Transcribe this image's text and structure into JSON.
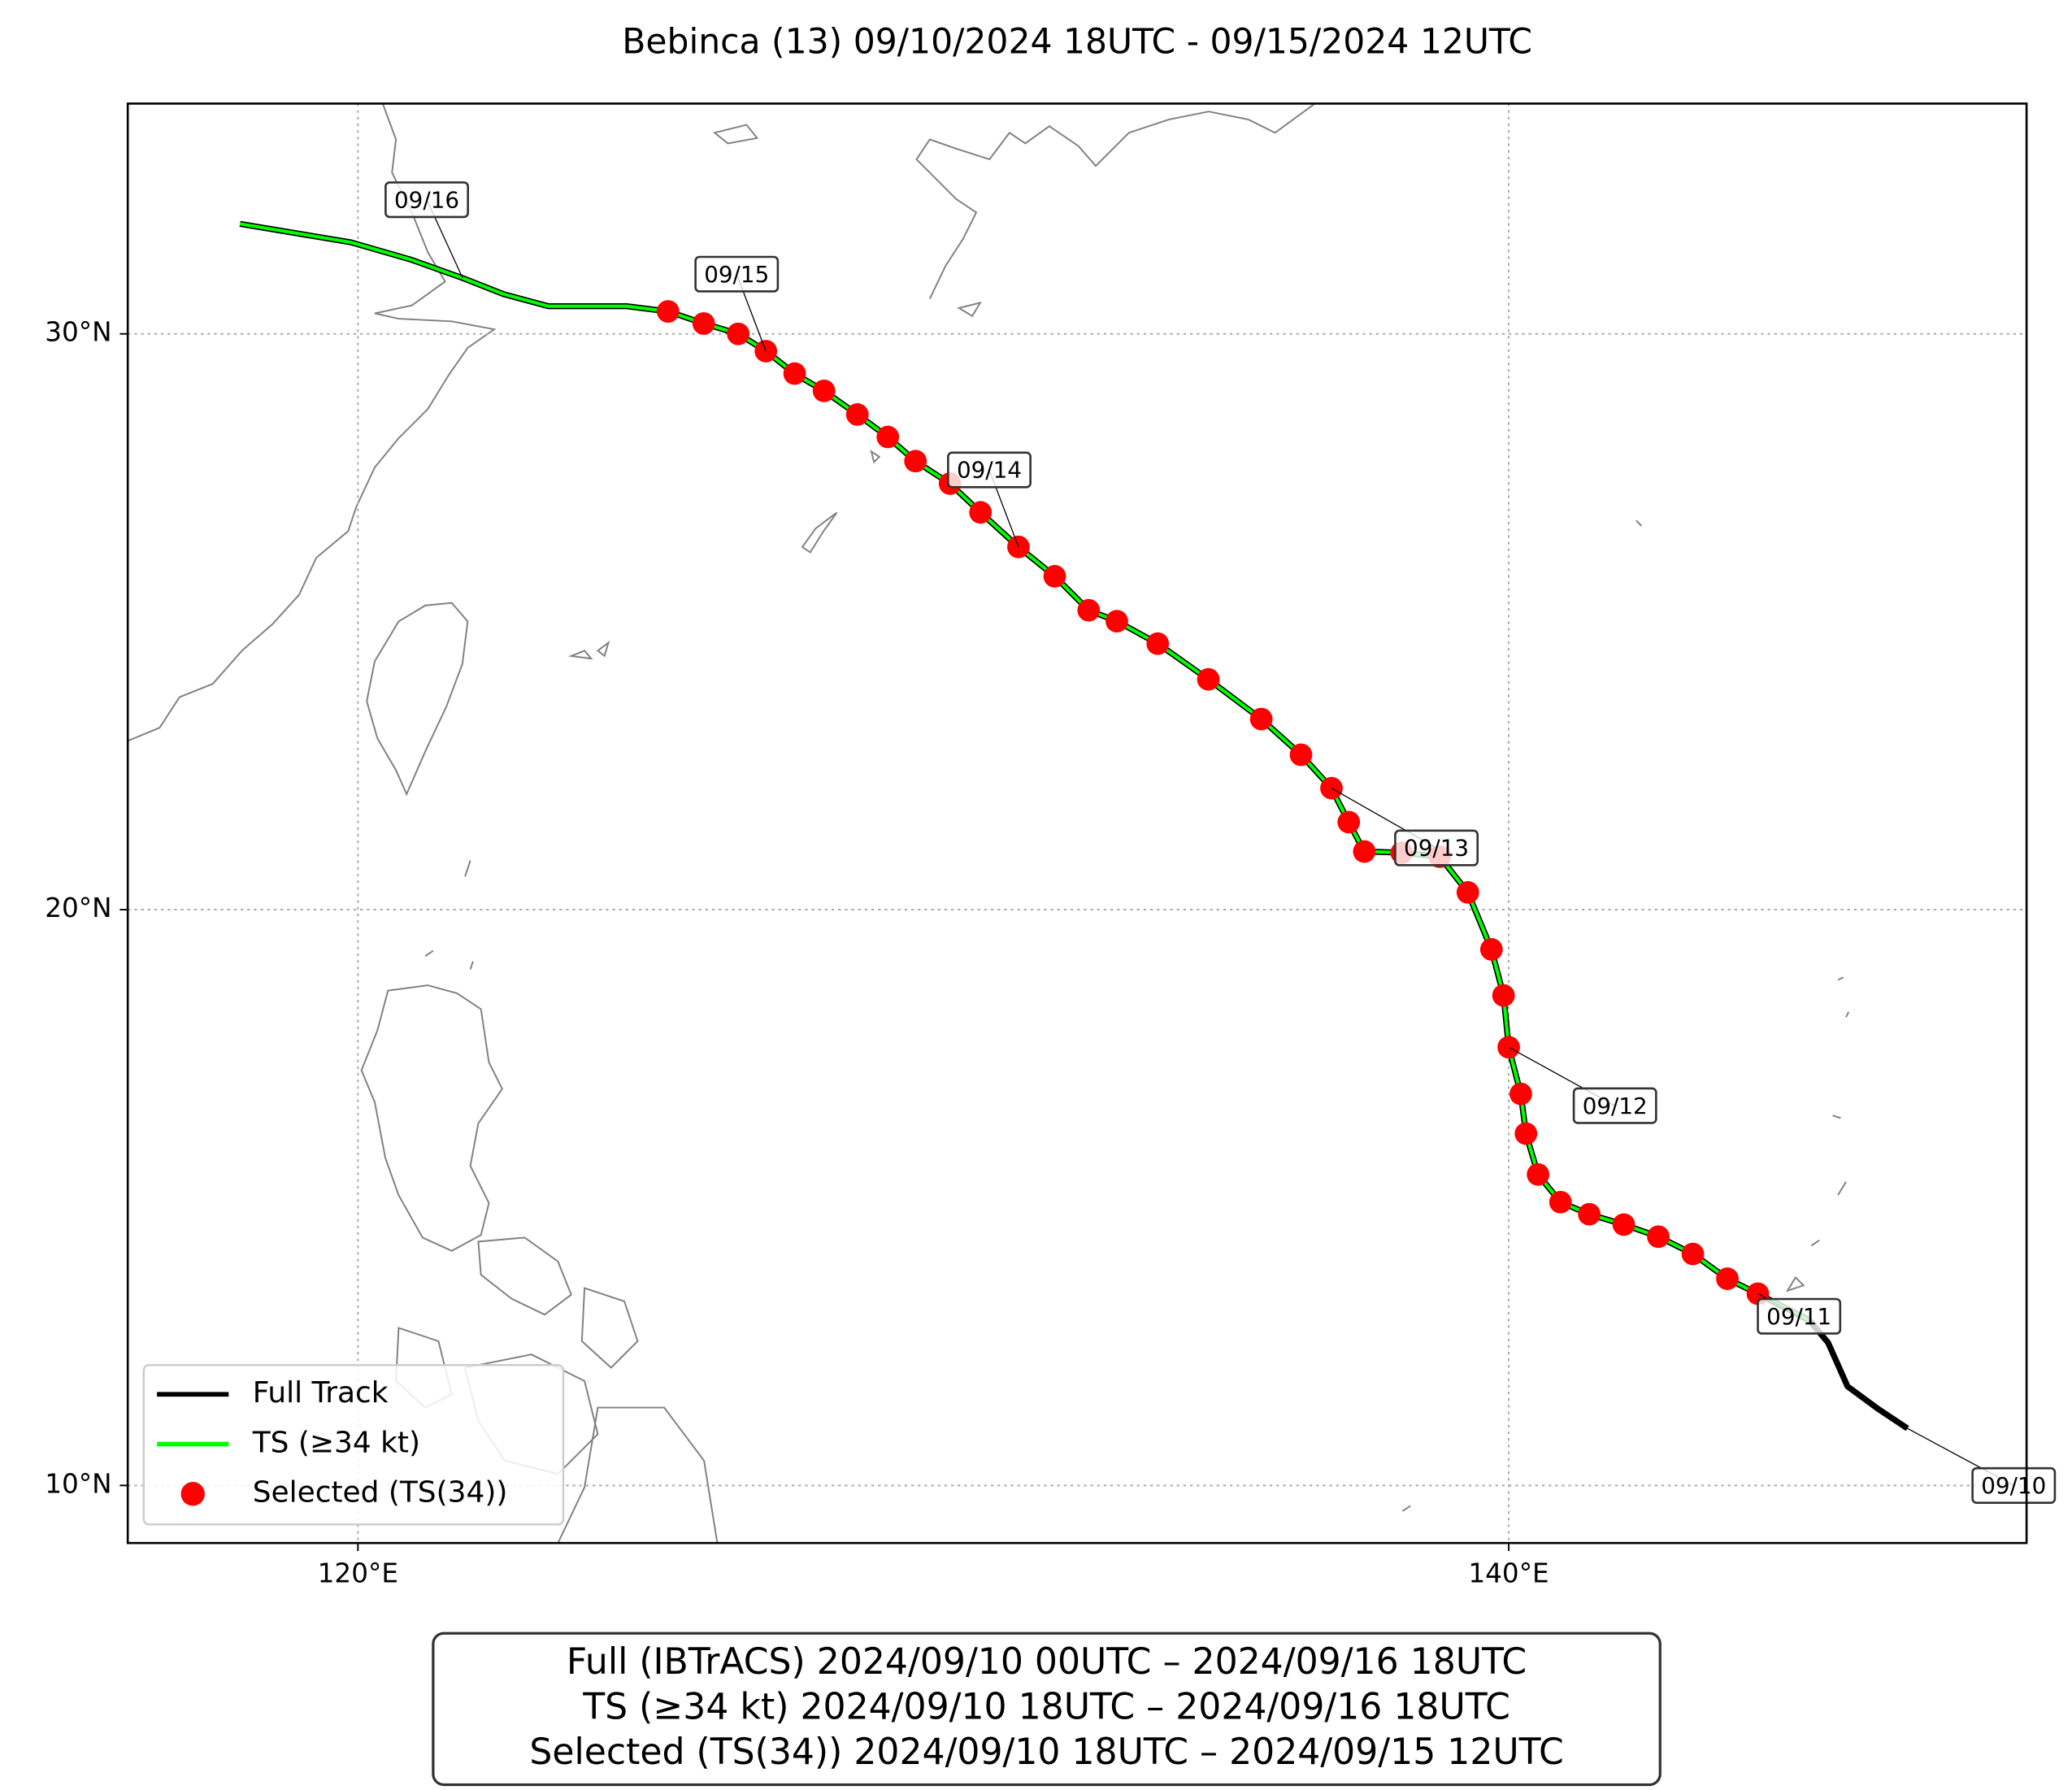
{
  "chart_data": {
    "type": "map",
    "title": "Bebinca (13)   09/10/2024 18UTC - 09/15/2024 12UTC",
    "xlim": [
      116,
      149
    ],
    "ylim": [
      9,
      34
    ],
    "xticks": [
      {
        "value": 120,
        "label": "120°E"
      },
      {
        "value": 140,
        "label": "140°E"
      }
    ],
    "yticks": [
      {
        "value": 10,
        "label": "10°N"
      },
      {
        "value": 20,
        "label": "20°N"
      },
      {
        "value": 30,
        "label": "30°N"
      }
    ],
    "grid": true,
    "legend": "lower left",
    "series": [
      {
        "name": "Full Track",
        "color": "#000000",
        "type": "line",
        "x": [
          146.93,
          146.42,
          145.89,
          145.55,
          145.22,
          144.33,
          143.8,
          143.2,
          142.6,
          142.0,
          141.4,
          140.9,
          140.51,
          140.3,
          140.21,
          140.0,
          139.91,
          139.7,
          139.29,
          138.8,
          138.14,
          137.49,
          137.22,
          136.92,
          136.39,
          135.7,
          134.78,
          133.9,
          133.19,
          132.7,
          132.11,
          131.48,
          130.82,
          130.29,
          129.69,
          129.21,
          128.68,
          128.1,
          127.59,
          127.09,
          126.61,
          126.01,
          125.39,
          124.67,
          123.31,
          122.53,
          121.82,
          120.92,
          119.88,
          117.95
        ],
        "values": [
          10.99,
          11.33,
          11.72,
          12.48,
          12.87,
          13.33,
          13.59,
          14.02,
          14.32,
          14.53,
          14.71,
          14.92,
          15.4,
          16.11,
          16.8,
          17.61,
          18.51,
          19.31,
          20.3,
          20.92,
          20.99,
          21.01,
          21.52,
          22.11,
          22.69,
          23.31,
          24.0,
          24.62,
          25.01,
          25.2,
          25.79,
          26.3,
          26.9,
          27.4,
          27.79,
          28.21,
          28.6,
          29.01,
          29.31,
          29.7,
          30.0,
          30.18,
          30.39,
          30.48,
          30.48,
          30.69,
          30.97,
          31.29,
          31.59,
          31.91
        ]
      },
      {
        "name": "TS (≥34 kt)",
        "color": "#00ff00",
        "type": "line",
        "x": [
          145.22,
          144.33,
          143.8,
          143.2,
          142.6,
          142.0,
          141.4,
          140.9,
          140.51,
          140.3,
          140.21,
          140.0,
          139.91,
          139.7,
          139.29,
          138.8,
          138.14,
          137.49,
          137.22,
          136.92,
          136.39,
          135.7,
          134.78,
          133.9,
          133.19,
          132.7,
          132.11,
          131.48,
          130.82,
          130.29,
          129.69,
          129.21,
          128.68,
          128.1,
          127.59,
          127.09,
          126.61,
          126.01,
          125.39,
          124.67,
          123.31,
          122.53,
          121.82,
          120.92,
          119.88,
          117.95
        ],
        "values": [
          12.87,
          13.33,
          13.59,
          14.02,
          14.32,
          14.53,
          14.71,
          14.92,
          15.4,
          16.11,
          16.8,
          17.61,
          18.51,
          19.31,
          20.3,
          20.92,
          20.99,
          21.01,
          21.52,
          22.11,
          22.69,
          23.31,
          24.0,
          24.62,
          25.01,
          25.2,
          25.79,
          26.3,
          26.9,
          27.4,
          27.79,
          28.21,
          28.6,
          29.01,
          29.31,
          29.7,
          30.0,
          30.18,
          30.39,
          30.48,
          30.48,
          30.69,
          30.97,
          31.29,
          31.59,
          31.91
        ]
      },
      {
        "name": "Selected (TS(34))",
        "color": "#ff0000",
        "type": "scatter",
        "x": [
          144.33,
          143.8,
          143.2,
          142.6,
          142.0,
          141.4,
          140.9,
          140.51,
          140.3,
          140.21,
          140.0,
          139.91,
          139.7,
          139.29,
          138.8,
          138.14,
          137.49,
          137.22,
          136.92,
          136.39,
          135.7,
          134.78,
          133.9,
          133.19,
          132.7,
          132.11,
          131.48,
          130.82,
          130.29,
          129.69,
          129.21,
          128.68,
          128.1,
          127.59,
          127.09,
          126.61,
          126.01,
          125.39
        ],
        "values": [
          13.33,
          13.59,
          14.02,
          14.32,
          14.53,
          14.71,
          14.92,
          15.4,
          16.11,
          16.8,
          17.61,
          18.51,
          19.31,
          20.3,
          20.92,
          20.99,
          21.01,
          21.52,
          22.11,
          22.69,
          23.31,
          24.0,
          24.62,
          25.01,
          25.2,
          25.79,
          26.3,
          26.9,
          27.4,
          27.79,
          28.21,
          28.6,
          29.01,
          29.31,
          29.7,
          30.0,
          30.18,
          30.39
        ]
      }
    ],
    "annotations": [
      {
        "text": "09/10",
        "x": 146.93,
        "y": 10.99
      },
      {
        "text": "09/11",
        "x": 144.33,
        "y": 13.33
      },
      {
        "text": "09/12",
        "x": 140.0,
        "y": 17.61
      },
      {
        "text": "09/13",
        "x": 136.92,
        "y": 22.11
      },
      {
        "text": "09/14",
        "x": 131.48,
        "y": 26.3
      },
      {
        "text": "09/15",
        "x": 127.09,
        "y": 29.7
      },
      {
        "text": "09/16",
        "x": 121.82,
        "y": 30.97
      }
    ],
    "info_box": [
      "Full (IBTrACS)   2024/09/10 00UTC – 2024/09/16 18UTC",
      "TS (≥34 kt)   2024/09/10 18UTC – 2024/09/16 18UTC",
      "Selected (TS(34))   2024/09/10 18UTC – 2024/09/15 12UTC"
    ]
  }
}
